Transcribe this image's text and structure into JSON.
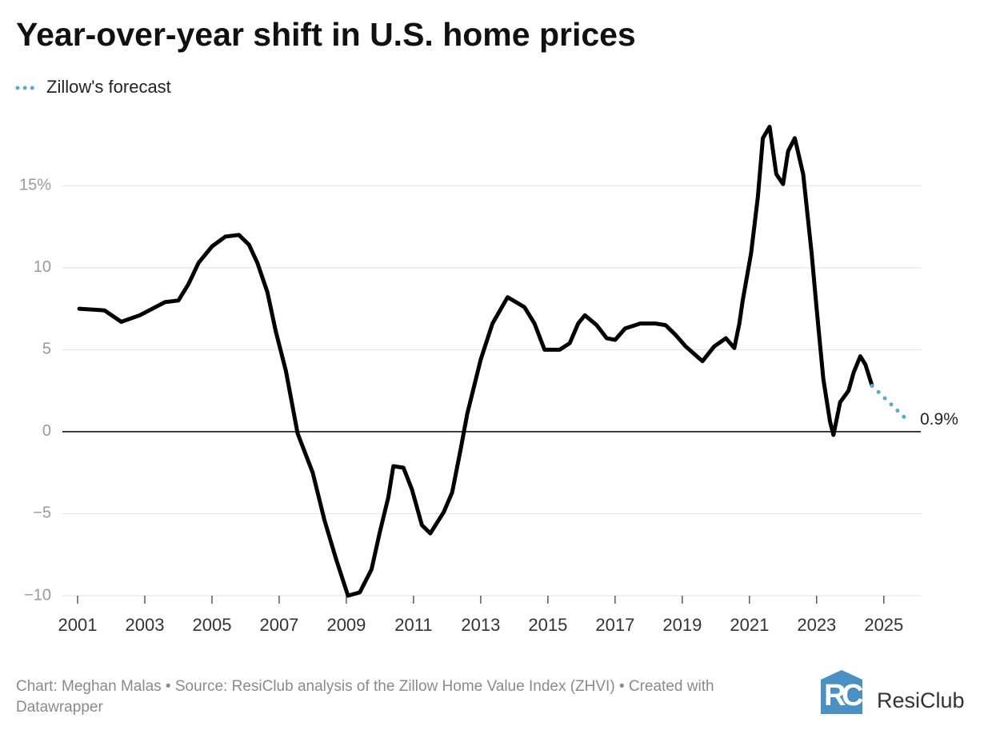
{
  "chart_data": {
    "type": "line",
    "title": "Year-over-year shift in U.S. home prices",
    "legend": "top-left",
    "grid": true,
    "xlim": [
      2001,
      2026.1
    ],
    "ylim": [
      -10,
      19.5
    ],
    "xticks": [
      2001,
      2003,
      2005,
      2007,
      2009,
      2011,
      2013,
      2015,
      2017,
      2019,
      2021,
      2023,
      2025
    ],
    "yticks": [
      {
        "value": -10,
        "label": "−10"
      },
      {
        "value": -5,
        "label": "−5"
      },
      0,
      5,
      10,
      {
        "value": 15,
        "label": "15%"
      }
    ],
    "series": [
      {
        "color": "#000000",
        "x": [
          2001.05,
          2001.8,
          2002.3,
          2002.85,
          2003.6,
          2004.0,
          2004.3,
          2004.6,
          2005.0,
          2005.4,
          2005.8,
          2006.1,
          2006.35,
          2006.65,
          2006.9,
          2007.2,
          2007.55,
          2008.0,
          2008.35,
          2008.7,
          2009.05,
          2009.4,
          2009.75,
          2010.0,
          2010.25,
          2010.4,
          2010.7,
          2010.95,
          2011.25,
          2011.5,
          2011.9,
          2012.15,
          2012.4,
          2012.6,
          2013.0,
          2013.35,
          2013.8,
          2014.3,
          2014.6,
          2014.9,
          2015.35,
          2015.65,
          2015.9,
          2016.1,
          2016.45,
          2016.75,
          2017.0,
          2017.3,
          2017.75,
          2018.2,
          2018.5,
          2018.8,
          2019.1,
          2019.6,
          2019.95,
          2020.3,
          2020.55,
          2020.7,
          2020.8,
          2021.05,
          2021.25,
          2021.4,
          2021.6,
          2021.8,
          2022.0,
          2022.15,
          2022.35,
          2022.6,
          2022.85,
          2023.0,
          2023.2,
          2023.4,
          2023.5,
          2023.7,
          2023.95,
          2024.1,
          2024.3,
          2024.45,
          2024.65
        ],
        "values": [
          7.5,
          7.4,
          6.7,
          7.1,
          7.9,
          8.0,
          9.0,
          10.3,
          11.3,
          11.9,
          12.0,
          11.4,
          10.3,
          8.5,
          6.1,
          3.7,
          -0.1,
          -2.5,
          -5.4,
          -7.8,
          -10.0,
          -9.8,
          -8.4,
          -6.1,
          -4.0,
          -2.1,
          -2.2,
          -3.5,
          -5.7,
          -6.2,
          -4.9,
          -3.7,
          -1.1,
          1.1,
          4.4,
          6.6,
          8.2,
          7.6,
          6.6,
          5.0,
          5.0,
          5.4,
          6.6,
          7.1,
          6.5,
          5.7,
          5.6,
          6.3,
          6.6,
          6.6,
          6.5,
          5.9,
          5.2,
          4.3,
          5.2,
          5.7,
          5.1,
          6.6,
          8.0,
          10.9,
          14.3,
          17.9,
          18.6,
          15.7,
          15.1,
          17.1,
          17.9,
          15.7,
          10.9,
          7.5,
          3.2,
          0.6,
          -0.2,
          1.8,
          2.5,
          3.6,
          4.6,
          4.1,
          2.8
        ]
      },
      {
        "name": "Zillow's forecast",
        "color": "#5aa9cf",
        "style": "dotted",
        "x": [
          2024.65,
          2024.9,
          2025.15,
          2025.4,
          2025.6
        ],
        "values": [
          2.8,
          2.3,
          1.8,
          1.3,
          0.9
        ],
        "value_labels": [
          null,
          null,
          null,
          null,
          "0.9%"
        ]
      }
    ],
    "footer": "Chart: Meghan Malas • Source: ResiClub analysis of the Zillow Home Value Index (ZHVI)  • Created with Datawrapper",
    "logo": "ResiClub"
  }
}
